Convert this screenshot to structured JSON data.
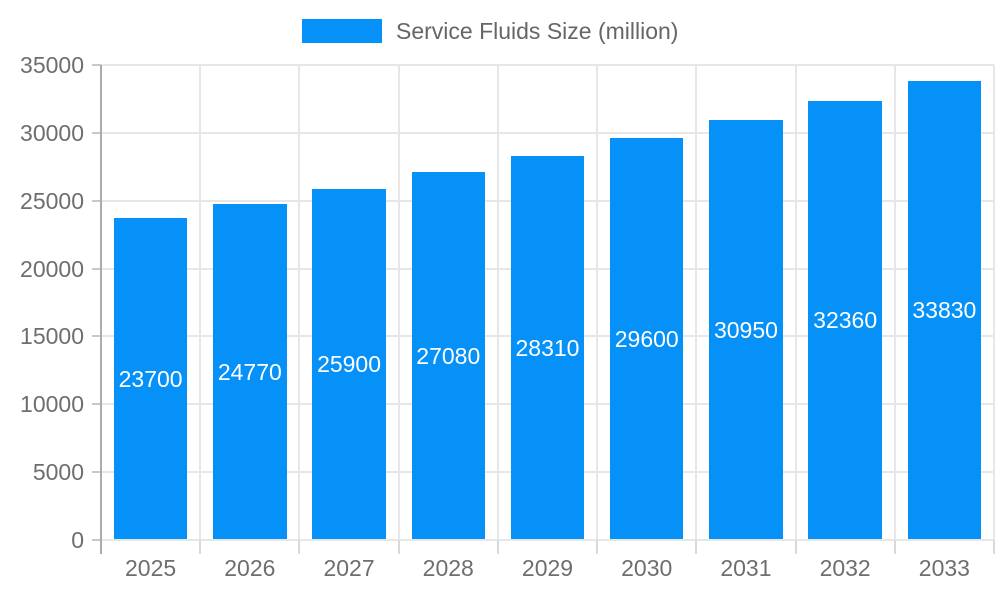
{
  "chart_data": {
    "type": "bar",
    "series_name": "Service Fluids Size (million)",
    "categories": [
      "2025",
      "2026",
      "2027",
      "2028",
      "2029",
      "2030",
      "2031",
      "2032",
      "2033"
    ],
    "values": [
      23700,
      24770,
      25900,
      27080,
      28310,
      29600,
      30950,
      32360,
      33830
    ],
    "value_labels": [
      "23700",
      "24770",
      "25900",
      "27080",
      "28310",
      "29600",
      "30950",
      "32360",
      "33830"
    ],
    "title": "",
    "xlabel": "",
    "ylabel": "",
    "ylim": [
      0,
      35000
    ],
    "yticks": [
      0,
      5000,
      10000,
      15000,
      20000,
      25000,
      30000,
      35000
    ],
    "ytick_labels": [
      "0",
      "5000",
      "10000",
      "15000",
      "20000",
      "25000",
      "30000",
      "35000"
    ],
    "grid": true,
    "legend_position": "top-center",
    "bar_label_position": "center-inside",
    "style": {
      "bar_color": "#0591f8",
      "bar_label_color": "#ffffff",
      "grid_color": "#e7e7e7",
      "axis_line_color": "#ababab",
      "y_tick_color": "#c8c8c8",
      "x_tick_color": "#d9d9d9",
      "axis_text_color": "#6e6e6e",
      "legend_text_color": "#666666",
      "background_color": "#ffffff"
    }
  }
}
